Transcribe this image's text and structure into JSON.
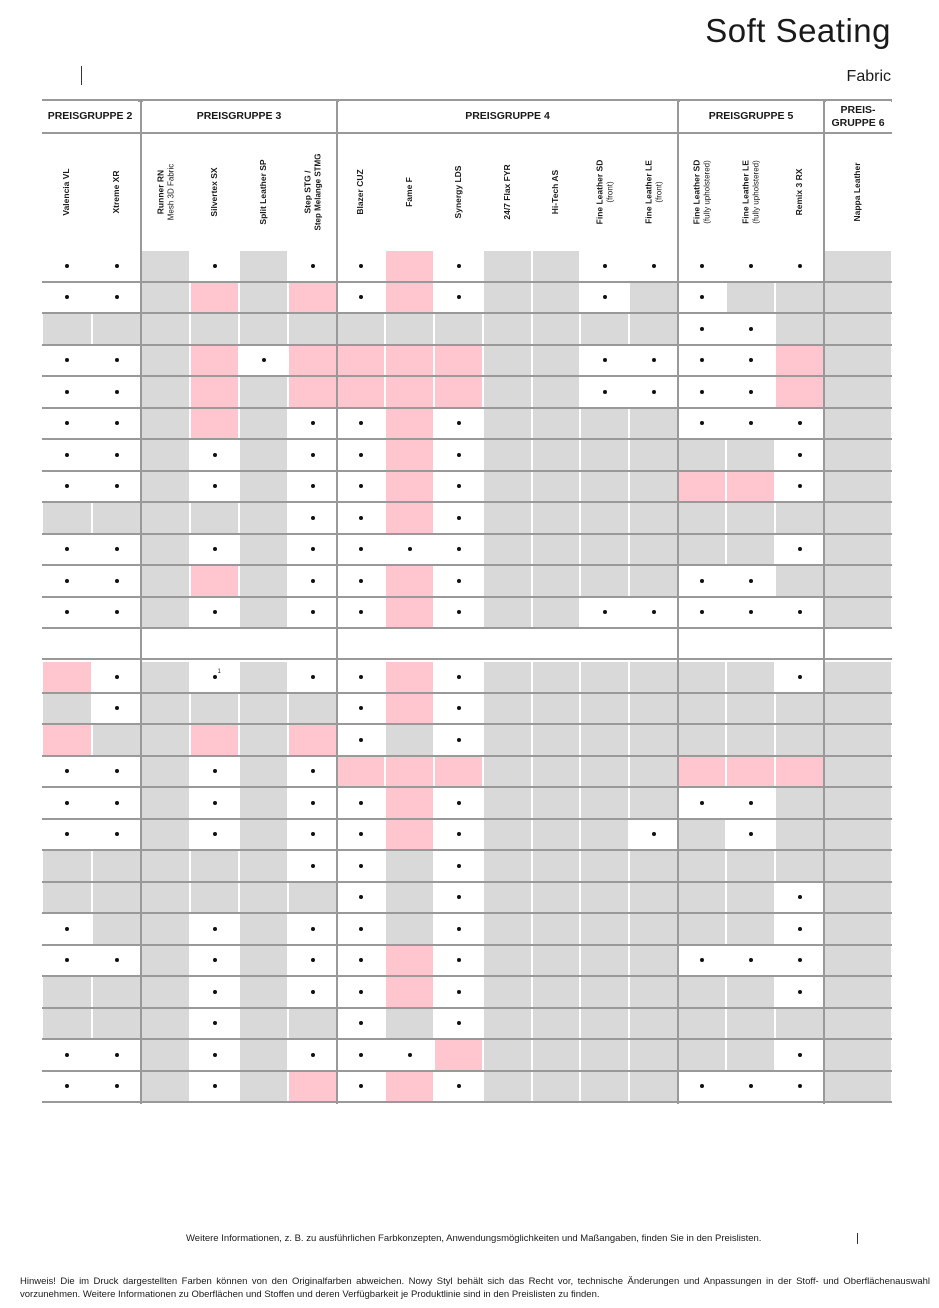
{
  "header": {
    "title": "Soft Seating",
    "subtitle": "Fabric"
  },
  "groups": [
    {
      "label": "PREISGRUPPE 2",
      "span": 2
    },
    {
      "label": "PREISGRUPPE 3",
      "span": 4
    },
    {
      "label": "PREISGRUPPE 4",
      "span": 7
    },
    {
      "label": "PREISGRUPPE 5",
      "span": 3
    },
    {
      "label": "PREIS-\nGRUPPE 6",
      "span": 1
    }
  ],
  "columns": [
    {
      "name": "Valencia VL",
      "sub": ""
    },
    {
      "name": "Xtreme XR",
      "sub": ""
    },
    {
      "name": "Runner RN",
      "sub": "Mesh 3D Fabric"
    },
    {
      "name": "Silvertex SX",
      "sub": ""
    },
    {
      "name": "Split Leather SP",
      "sub": ""
    },
    {
      "name": "Step STG /",
      "sub": "Step Melange STMG",
      "sub_bold": true
    },
    {
      "name": "Blazer CUZ",
      "sub": ""
    },
    {
      "name": "Fame F",
      "sub": ""
    },
    {
      "name": "Synergy LDS",
      "sub": ""
    },
    {
      "name": "24/7 Flax FYR",
      "sub": ""
    },
    {
      "name": "Hi-Tech AS",
      "sub": ""
    },
    {
      "name": "Fine Leather SD",
      "sub": "(front)"
    },
    {
      "name": "Fine Leather LE",
      "sub": "(front)"
    },
    {
      "name": "Fine Leather SD",
      "sub": "(fully upholstered)"
    },
    {
      "name": "Fine Leather LE",
      "sub": "(fully upholstered)"
    },
    {
      "name": "Remix 3 RX",
      "sub": ""
    },
    {
      "name": "Nappa Leather",
      "sub": ""
    }
  ],
  "legend_codes": {
    "D": "available (white cell with dot)",
    "W": "white",
    "G": "gray",
    "P": "pink",
    "S": "dot with footnote 1"
  },
  "tables": [
    {
      "rows": [
        "DDGDGDDPDGGDDDDDG",
        "DDGPGPDPDGGDGDGGG",
        "GGGGGGGGGGGGGDDGG",
        "DDGPDPPPPGGDDDDPG",
        "DDGPGPPPPGGDDDDPG",
        "DDGPGDDPDGGGGDDDG",
        "DDGDGDDPDGGGGGGDG",
        "DDGDGDDPDGGGGPPDG",
        "GGGGGDDPDGGGGGGGG",
        "DDGDGDDDDGGGGGGDG",
        "DDGPGDDPDGGGGDDGG",
        "DDGDGDDPDGGDDDDDG"
      ]
    },
    {
      "rows": [
        "PDGSGDDPDGGGGGGDG",
        "GDGGGGDPDGGGGGGGG",
        "PGGPGPDGDGGGGGGGG",
        "DDGDGDPPPGGGGPPPG",
        "DDGDGDDPDGGGGDDGG",
        "DDGDGDDPDGGGDGDGG",
        "GGGGGDDGDGGGGGGGG",
        "GGGGGGDGDGGGGGGDG",
        "DGGDGDDGDGGGGGGDG",
        "DDGDGDDPDGGGGDDDG",
        "GGGDGDDPDGGGGGGDG",
        "GGGDGGDGDGGGGGGGG",
        "DDGDGDDDPGGGGGGDG",
        "DDGDGPDPDGGGGDDDG"
      ]
    }
  ],
  "footnote_mark": "1",
  "info": "Weitere Informationen, z. B. zu ausführlichen Farbkonzepten, Anwendungsmöglichkeiten und Maßangaben, finden Sie in den Preislisten.",
  "note": "Hinweis! Die im Druck dargestellten Farben können von den Originalfarben abweichen. Nowy Styl behält sich das Recht vor, technische Änderungen und Anpassungen in der Stoff- und Oberflächenauswahl vorzunehmen. Weitere Informationen zu Oberflächen und Stoffen und deren Verfügbarkeit je Produktlinie sind in den Preislisten zu finden."
}
